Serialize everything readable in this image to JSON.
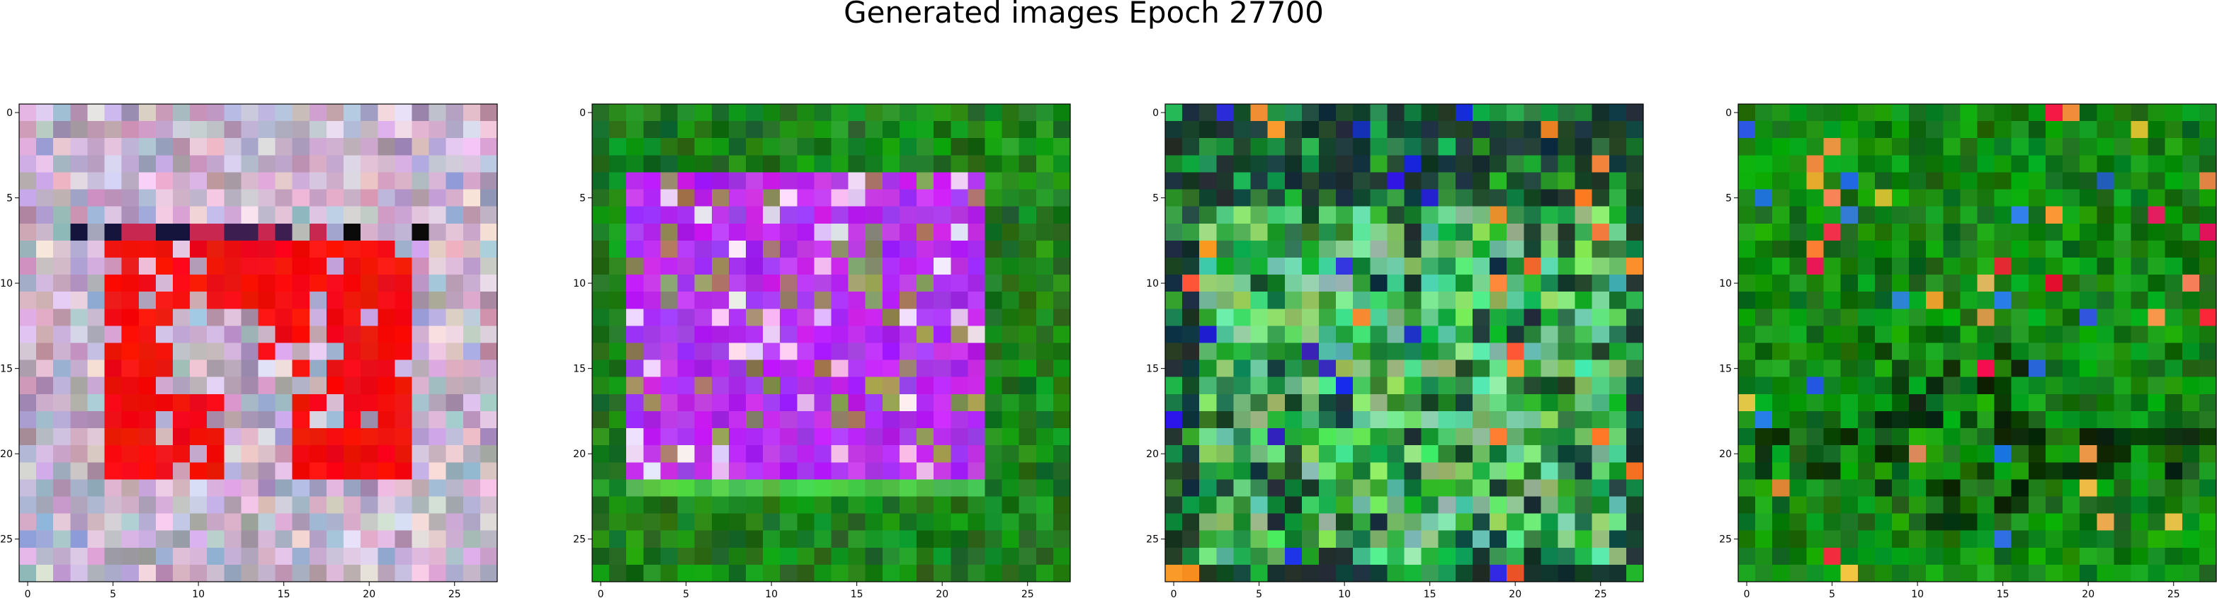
{
  "figure": {
    "title": "Generated images Epoch 27700"
  },
  "chart_data": [
    {
      "type": "heatmap",
      "image": "generated-sample",
      "grid_size": 28,
      "xlim": [
        -0.5,
        27.5
      ],
      "ylim": [
        27.5,
        -0.5
      ],
      "xticks": [
        "0",
        "5",
        "10",
        "15",
        "20",
        "25"
      ],
      "yticks": [
        "0",
        "5",
        "10",
        "15",
        "20",
        "25"
      ],
      "grid": false,
      "palette": "pastel-noise-with-red-shape",
      "colors": {
        "background": "#c8a8c8",
        "shape": "#f01010",
        "accent": "#1a1040"
      }
    },
    {
      "type": "heatmap",
      "image": "generated-sample",
      "grid_size": 28,
      "xlim": [
        -0.5,
        27.5
      ],
      "ylim": [
        27.5,
        -0.5
      ],
      "xticks": [
        "0",
        "5",
        "10",
        "15",
        "20",
        "25"
      ],
      "yticks": [
        "0",
        "5",
        "10",
        "15",
        "20",
        "25"
      ],
      "grid": false,
      "palette": "green-with-purple-shape",
      "colors": {
        "background": "#107a10",
        "shape": "#a020f0",
        "accent": "#e8c8f0"
      }
    },
    {
      "type": "heatmap",
      "image": "generated-sample",
      "grid_size": 28,
      "xlim": [
        -0.5,
        27.5
      ],
      "ylim": [
        27.5,
        -0.5
      ],
      "xticks": [
        "0",
        "5",
        "10",
        "15",
        "20",
        "25"
      ],
      "yticks": [
        "0",
        "5",
        "10",
        "15",
        "20",
        "25"
      ],
      "grid": false,
      "palette": "green-mixed-with-light-green",
      "colors": {
        "background": "#108a20",
        "shape": "#50d070",
        "accent": "#1010c0"
      }
    },
    {
      "type": "heatmap",
      "image": "generated-sample",
      "grid_size": 28,
      "xlim": [
        -0.5,
        27.5
      ],
      "ylim": [
        27.5,
        -0.5
      ],
      "xticks": [
        "0",
        "5",
        "10",
        "15",
        "20",
        "25"
      ],
      "yticks": [
        "0",
        "5",
        "10",
        "15",
        "20",
        "25"
      ],
      "grid": false,
      "palette": "dark-green-with-sparse-colors",
      "colors": {
        "background": "#0a6a0a",
        "shape": "#000000",
        "accent": "#e0a040"
      }
    }
  ]
}
